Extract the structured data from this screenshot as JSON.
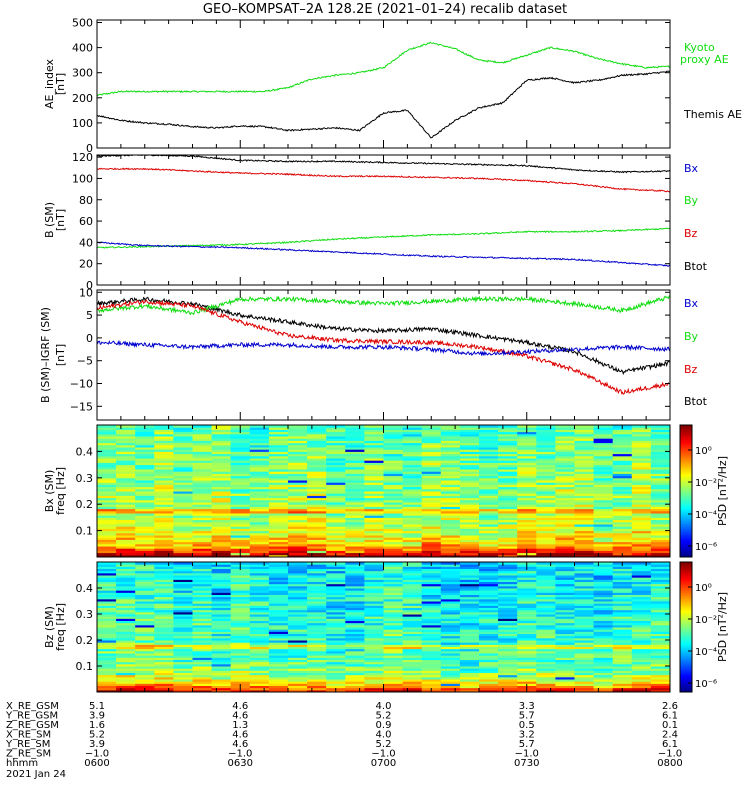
{
  "title": "GEO–KOMPSAT–2A 128.2E (2021–01–24) recalib dataset",
  "colors": {
    "black": "#000000",
    "red": "#dd0000",
    "green": "#11dd11",
    "blue": "#0000cc"
  },
  "chart_data": [
    {
      "type": "line",
      "panel": "ae",
      "ylabel": "AE_index",
      "yunit": "[nT]",
      "ylim": [
        0,
        510
      ],
      "yticks": [
        "0",
        "100",
        "200",
        "300",
        "400",
        "500"
      ],
      "x": [
        0,
        5,
        10,
        15,
        20,
        25,
        30,
        35,
        40,
        45,
        50,
        55,
        60,
        65,
        70,
        75,
        80,
        85,
        90,
        95,
        100,
        105,
        110,
        115,
        120
      ],
      "series": [
        {
          "name": "Kyoto proxy AE",
          "color": "#11dd11",
          "values": [
            210,
            225,
            225,
            225,
            225,
            225,
            225,
            225,
            240,
            275,
            290,
            300,
            320,
            390,
            420,
            395,
            350,
            340,
            370,
            400,
            385,
            355,
            335,
            320,
            325
          ]
        },
        {
          "name": "Themis AE",
          "color": "#000000",
          "values": [
            130,
            110,
            100,
            95,
            85,
            80,
            88,
            85,
            70,
            75,
            80,
            70,
            140,
            150,
            40,
            110,
            160,
            180,
            270,
            280,
            260,
            270,
            290,
            295,
            305
          ]
        }
      ]
    },
    {
      "type": "line",
      "panel": "b",
      "ylabel": "B (SM)",
      "yunit": "[nT]",
      "ylim": [
        0,
        122
      ],
      "yticks": [
        "0",
        "20",
        "40",
        "60",
        "80",
        "100",
        "120"
      ],
      "x": [
        0,
        10,
        20,
        30,
        40,
        50,
        60,
        70,
        80,
        90,
        100,
        110,
        120
      ],
      "series": [
        {
          "name": "Bx",
          "color": "#000000",
          "values": [
            121,
            122,
            121,
            117,
            116,
            116,
            115,
            114,
            113,
            112,
            108,
            106,
            107
          ]
        },
        {
          "name": "By",
          "color": "#11dd11",
          "values": [
            35,
            36,
            37,
            38,
            40,
            43,
            45,
            47,
            48,
            50,
            50,
            51,
            53
          ]
        },
        {
          "name": "Bz",
          "color": "#dd0000",
          "values": [
            109,
            109,
            107,
            105,
            104,
            102,
            102,
            101,
            100,
            98,
            95,
            90,
            88
          ]
        },
        {
          "name": "Btot",
          "color": "#0000cc",
          "values": [
            40,
            37,
            36,
            35,
            33,
            31,
            29,
            27,
            26,
            25,
            24,
            21,
            18
          ]
        }
      ]
    },
    {
      "type": "line",
      "panel": "db",
      "ylabel": "B (SM)–IGRF (SM)",
      "yunit": "[nT]",
      "ylim": [
        -18,
        10.5
      ],
      "yticks": [
        "−15",
        "−10",
        "−5",
        "0",
        "5",
        "10"
      ],
      "x": [
        0,
        10,
        20,
        30,
        40,
        50,
        60,
        70,
        80,
        90,
        100,
        110,
        120
      ],
      "series": [
        {
          "name": "Bx",
          "color": "#000000",
          "values": [
            7.5,
            8.5,
            7.5,
            5,
            3.5,
            2,
            1.5,
            2,
            0.5,
            -1,
            -3,
            -7.5,
            -5.5
          ]
        },
        {
          "name": "By",
          "color": "#11dd11",
          "values": [
            6,
            7,
            5.5,
            8.5,
            8.5,
            8,
            7.5,
            8,
            8.5,
            8.5,
            7.5,
            6,
            9
          ]
        },
        {
          "name": "Bz",
          "color": "#dd0000",
          "values": [
            6.5,
            8,
            7,
            3.5,
            0.5,
            -0.5,
            -0.8,
            -1,
            -2,
            -4,
            -7,
            -12,
            -10
          ]
        },
        {
          "name": "Btot",
          "color": "#0000cc",
          "values": [
            -1,
            -1.5,
            -2,
            -1.5,
            -1.5,
            -2,
            -2,
            -2.5,
            -3.5,
            -3,
            -2.5,
            -2,
            -2.5
          ]
        }
      ]
    },
    {
      "type": "heatmap",
      "panel": "bx_spec",
      "ylabel": "Bx (SM)",
      "yunit": "freq [Hz]",
      "ylim": [
        0,
        0.5
      ],
      "yticks": [
        "0.1",
        "0.2",
        "0.3",
        "0.4"
      ],
      "colorbar": {
        "label": "PSD [nT²/Hz]",
        "ticks": [
          "10⁰",
          "10⁻²",
          "10⁻⁴",
          "10⁻⁶"
        ]
      }
    },
    {
      "type": "heatmap",
      "panel": "bz_spec",
      "ylabel": "Bz (SM)",
      "yunit": "freq [Hz]",
      "ylim": [
        0,
        0.5
      ],
      "yticks": [
        "0.1",
        "0.2",
        "0.3",
        "0.4"
      ],
      "colorbar": {
        "label": "PSD [nT²/Hz]",
        "ticks": [
          "10⁰",
          "10⁻²",
          "10⁻⁴",
          "10⁻⁶"
        ]
      }
    }
  ],
  "legends": {
    "ae": [
      "Kyoto",
      "proxy AE",
      "Themis AE"
    ],
    "b": [
      "Bx",
      "By",
      "Bz",
      "Btot"
    ],
    "db": [
      "Bx",
      "By",
      "Bz",
      "Btot"
    ]
  },
  "ephemeris": {
    "rows": [
      {
        "label": "X_RE_GSM",
        "values": [
          "5.1",
          "4.6",
          "4.0",
          "3.3",
          "2.6"
        ]
      },
      {
        "label": "Y_RE_GSM",
        "values": [
          "3.9",
          "4.6",
          "5.2",
          "5.7",
          "6.1"
        ]
      },
      {
        "label": "Z_RE_GSM",
        "values": [
          "1.6",
          "1.3",
          "0.9",
          "0.5",
          "0.1"
        ]
      },
      {
        "label": "X_RE_SM",
        "values": [
          "5.2",
          "4.6",
          "4.0",
          "3.2",
          "2.4"
        ]
      },
      {
        "label": "Y_RE_SM",
        "values": [
          "3.9",
          "4.6",
          "5.2",
          "5.7",
          "6.1"
        ]
      },
      {
        "label": "Z_RE_SM",
        "values": [
          "−1.0",
          "−1.0",
          "−1.0",
          "−1.0",
          "−1.0"
        ]
      },
      {
        "label": "hhmm",
        "values": [
          "0600",
          "0630",
          "0700",
          "0730",
          "0800"
        ]
      }
    ],
    "date": "2021 Jan 24"
  }
}
